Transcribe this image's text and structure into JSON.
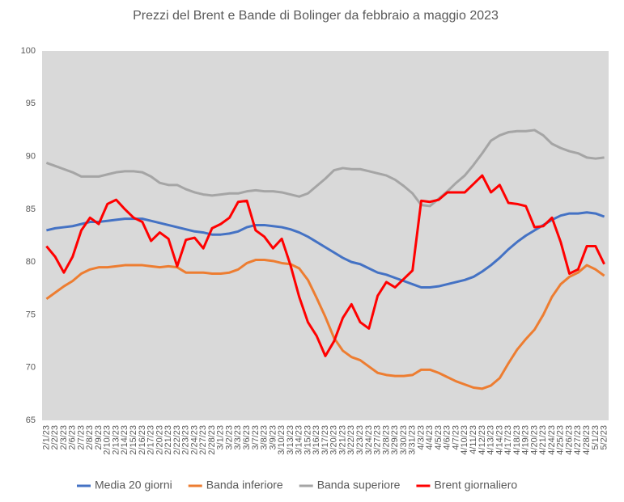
{
  "chart_data": {
    "type": "line",
    "title": "Prezzi del Brent e Bande di Bolinger da febbraio a maggio 2023",
    "categories": [
      "2/1/23",
      "2/2/23",
      "2/3/23",
      "2/6/23",
      "2/7/23",
      "2/8/23",
      "2/9/23",
      "2/10/23",
      "2/13/23",
      "2/14/23",
      "2/15/23",
      "2/16/23",
      "2/17/23",
      "2/20/23",
      "2/21/23",
      "2/22/23",
      "2/23/23",
      "2/24/23",
      "2/27/23",
      "2/28/23",
      "3/1/23",
      "3/2/23",
      "3/3/23",
      "3/6/23",
      "3/7/23",
      "3/8/23",
      "3/9/23",
      "3/10/23",
      "3/13/23",
      "3/14/23",
      "3/15/23",
      "3/16/23",
      "3/17/23",
      "3/20/23",
      "3/21/23",
      "3/22/23",
      "3/23/23",
      "3/24/23",
      "3/27/23",
      "3/28/23",
      "3/29/23",
      "3/30/23",
      "3/31/23",
      "4/3/23",
      "4/4/23",
      "4/5/23",
      "4/6/23",
      "4/7/23",
      "4/10/23",
      "4/11/23",
      "4/12/23",
      "4/13/23",
      "4/14/23",
      "4/17/23",
      "4/18/23",
      "4/19/23",
      "4/20/23",
      "4/21/23",
      "4/24/23",
      "4/25/23",
      "4/26/23",
      "4/27/23",
      "4/28/23",
      "5/1/23",
      "5/2/23"
    ],
    "series": [
      {
        "name": "Media 20 giorni",
        "color": "#4472c4",
        "values": [
          83.0,
          83.2,
          83.3,
          83.4,
          83.6,
          83.8,
          83.8,
          83.9,
          84.0,
          84.1,
          84.1,
          84.1,
          83.9,
          83.7,
          83.5,
          83.3,
          83.1,
          82.9,
          82.8,
          82.6,
          82.6,
          82.7,
          82.9,
          83.3,
          83.5,
          83.5,
          83.4,
          83.3,
          83.1,
          82.8,
          82.4,
          81.9,
          81.4,
          80.9,
          80.4,
          80.0,
          79.8,
          79.4,
          79.0,
          78.8,
          78.5,
          78.2,
          77.9,
          77.6,
          77.6,
          77.7,
          77.9,
          78.1,
          78.3,
          78.6,
          79.1,
          79.7,
          80.4,
          81.2,
          81.9,
          82.5,
          83.0,
          83.5,
          84.0,
          84.4,
          84.6,
          84.6,
          84.7,
          84.6,
          84.3
        ]
      },
      {
        "name": "Banda inferiore",
        "color": "#ed7d31",
        "values": [
          76.5,
          77.1,
          77.7,
          78.2,
          78.9,
          79.3,
          79.5,
          79.5,
          79.6,
          79.7,
          79.7,
          79.7,
          79.6,
          79.5,
          79.6,
          79.5,
          79.0,
          79.0,
          79.0,
          78.9,
          78.9,
          79.0,
          79.3,
          79.9,
          80.2,
          80.2,
          80.1,
          79.9,
          79.8,
          79.4,
          78.3,
          76.6,
          74.8,
          72.8,
          71.6,
          71.0,
          70.7,
          70.1,
          69.5,
          69.3,
          69.2,
          69.2,
          69.3,
          69.8,
          69.8,
          69.5,
          69.1,
          68.7,
          68.4,
          68.1,
          68.0,
          68.3,
          69.0,
          70.4,
          71.7,
          72.7,
          73.6,
          75.0,
          76.7,
          77.9,
          78.6,
          79.0,
          79.7,
          79.3,
          78.7
        ]
      },
      {
        "name": "Banda superiore",
        "color": "#a5a5a5",
        "values": [
          89.4,
          89.1,
          88.8,
          88.5,
          88.1,
          88.1,
          88.1,
          88.3,
          88.5,
          88.6,
          88.6,
          88.5,
          88.1,
          87.5,
          87.3,
          87.3,
          86.9,
          86.6,
          86.4,
          86.3,
          86.4,
          86.5,
          86.5,
          86.7,
          86.8,
          86.7,
          86.7,
          86.6,
          86.4,
          86.2,
          86.5,
          87.2,
          87.9,
          88.7,
          88.9,
          88.8,
          88.8,
          88.6,
          88.4,
          88.2,
          87.8,
          87.2,
          86.5,
          85.4,
          85.3,
          86.0,
          86.7,
          87.5,
          88.2,
          89.2,
          90.3,
          91.5,
          92.0,
          92.3,
          92.4,
          92.4,
          92.5,
          92.0,
          91.2,
          90.8,
          90.5,
          90.3,
          89.9,
          89.8,
          89.9
        ]
      },
      {
        "name": "Brent giornaliero",
        "color": "#ff0000",
        "values": [
          81.5,
          80.5,
          79.0,
          80.5,
          83.0,
          84.2,
          83.6,
          85.5,
          85.9,
          85.0,
          84.2,
          83.8,
          82.0,
          82.8,
          82.2,
          79.6,
          82.1,
          82.3,
          81.3,
          83.2,
          83.6,
          84.2,
          85.7,
          85.8,
          83.0,
          82.4,
          81.3,
          82.2,
          79.7,
          76.7,
          74.3,
          73.0,
          71.1,
          72.5,
          74.7,
          76.0,
          74.3,
          73.7,
          76.8,
          78.1,
          77.6,
          78.4,
          79.2,
          85.8,
          85.7,
          85.9,
          86.6,
          86.6,
          86.6,
          87.4,
          88.2,
          86.6,
          87.3,
          85.6,
          85.5,
          85.3,
          83.3,
          83.4,
          84.2,
          81.9,
          78.9,
          79.3,
          81.5,
          81.5,
          79.8
        ]
      }
    ],
    "ylim": [
      65,
      100
    ],
    "yticks": [
      65,
      70,
      75,
      80,
      85,
      90,
      95,
      100
    ],
    "grid": false,
    "legend": "bottom",
    "background": "#d9d9d9"
  }
}
